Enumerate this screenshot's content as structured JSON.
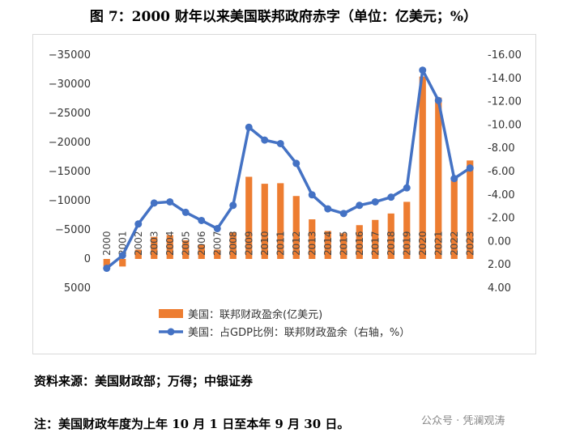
{
  "title": "图 7：2000 财年以来美国联邦政府赤字（单位：亿美元；%）",
  "source": "资料来源：美国财政部；万得；中银证券",
  "note": "注：美国财政年度为上年 10 月 1 日至本年 9 月 30 日。",
  "watermark": "公众号 · 凭澜观涛",
  "colors": {
    "bar": "#ED7D31",
    "line": "#4472C4"
  },
  "chart_data": {
    "type": "bar",
    "categories": [
      "2000",
      "2001",
      "2002",
      "2003",
      "2004",
      "2005",
      "2006",
      "2007",
      "2008",
      "2009",
      "2010",
      "2011",
      "2012",
      "2013",
      "2014",
      "2015",
      "2016",
      "2017",
      "2018",
      "2019",
      "2020",
      "2021",
      "2022",
      "2023"
    ],
    "left_axis": {
      "ylim": [
        5000,
        -35000
      ],
      "ticks": [
        -35000,
        -30000,
        -25000,
        -20000,
        -15000,
        -10000,
        -5000,
        0,
        5000
      ],
      "tick_labels": [
        "−35000",
        "−30000",
        "−25000",
        "−20000",
        "−15000",
        "−10000",
        "−5000",
        "0",
        "5000"
      ]
    },
    "right_axis": {
      "ylim": [
        4,
        -16
      ],
      "ticks": [
        -16,
        -14,
        -12,
        -10,
        -8,
        -6,
        -4,
        -2,
        0,
        2,
        4
      ],
      "tick_labels": [
        "-16.00",
        "-14.00",
        "-12.00",
        "-10.00",
        "-8.00",
        "-6.00",
        "-4.00",
        "-2.00",
        "0.00",
        "2.00",
        "4.00"
      ]
    },
    "series": [
      {
        "name": "美国：联邦财政盈余(亿美元)",
        "type": "bar",
        "axis": "left",
        "values": [
          1300,
          1300,
          -1600,
          -3800,
          -4100,
          -3200,
          -2500,
          -1600,
          -4600,
          -14100,
          -12900,
          -13000,
          -10800,
          -6800,
          -4800,
          -4400,
          -5800,
          -6700,
          -7800,
          -9800,
          -31300,
          -27700,
          -13800,
          -16900
        ]
      },
      {
        "name": "美国：占GDP比例：联邦财政盈余（右轴，%）",
        "type": "line",
        "axis": "right",
        "values": [
          2.3,
          1.2,
          -1.5,
          -3.3,
          -3.4,
          -2.5,
          -1.8,
          -1.1,
          -3.1,
          -9.8,
          -8.7,
          -8.4,
          -6.7,
          -4.0,
          -2.8,
          -2.4,
          -3.1,
          -3.4,
          -3.8,
          -4.6,
          -14.7,
          -12.1,
          -5.4,
          -6.3
        ]
      }
    ]
  }
}
